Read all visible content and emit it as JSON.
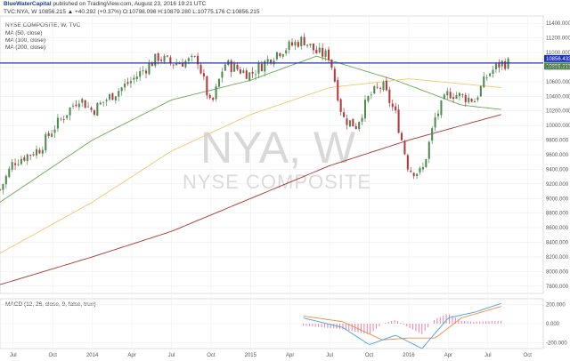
{
  "header": {
    "brand": "BlueWaterCapital",
    "published": "published on TradingView.com, August 23, 2016 19:21 UTC",
    "quote": "TVC:NYA, W  10856.215  ▲ +40.292 (+0.37%)  O:10798.096  H:10879.280  L:10775.176  C:10856.215"
  },
  "legend": {
    "title": "NYSE COMPOSITE, W, TVC",
    "ma50": "MA (50, close)",
    "ma100": "MA (100, close)",
    "ma200": "MA (200, close)",
    "macd": "MACD (12, 26, close, 9, false, true)"
  },
  "watermark": {
    "symbol": "NYA, W",
    "name": "NYSE COMPOSITE"
  },
  "colors": {
    "up": "#4f8a4f",
    "down": "#b3393a",
    "ma50": "#6aa84f",
    "ma100": "#f4c76b",
    "ma200": "#a83232",
    "hline": "#1e2fbf",
    "macd": "#3da3e8",
    "signal": "#f08a3c",
    "hist": "#e88bb0",
    "price_tag": "#1e2fbf"
  },
  "chart_data": {
    "type": "candlestick",
    "title": "NYSE COMPOSITE, W, TVC",
    "x_tick_labels": [
      "Jul",
      "Oct",
      "2014",
      "Apr",
      "Jul",
      "Oct",
      "2015",
      "Apr",
      "Jul",
      "Oct",
      "2016",
      "Apr",
      "Jul",
      "Oct"
    ],
    "x_tick_dates": [
      "2013-07",
      "2013-10",
      "2014-01",
      "2014-04",
      "2014-07",
      "2014-10",
      "2015-01",
      "2015-04",
      "2015-07",
      "2015-10",
      "2016-01",
      "2016-04",
      "2016-07",
      "2016-10"
    ],
    "y_tick_labels": [
      "11400.000",
      "11200.000",
      "11000.000",
      "10800.000",
      "10600.000",
      "10400.000",
      "10200.000",
      "10000.000",
      "9800.000",
      "9600.000",
      "9400.000",
      "9200.000",
      "9000.000",
      "8800.000",
      "8600.000",
      "8400.000",
      "8200.000",
      "8000.000",
      "7800.000"
    ],
    "ylim": [
      7700,
      11500
    ],
    "last_price": "10856.215",
    "resistance_label": "10856.433",
    "resistance_level": 10856.433,
    "ohlc_last": {
      "open": 10798.096,
      "high": 10879.28,
      "low": 10775.176,
      "close": 10856.215,
      "change": 40.292,
      "change_pct": 0.37
    },
    "price_anchors": [
      {
        "date": "2013-06",
        "close": 9120
      },
      {
        "date": "2013-07",
        "close": 9500
      },
      {
        "date": "2013-09",
        "close": 9680
      },
      {
        "date": "2013-10",
        "close": 9950
      },
      {
        "date": "2013-12",
        "close": 10380
      },
      {
        "date": "2014-01",
        "close": 10200
      },
      {
        "date": "2014-02",
        "close": 10350
      },
      {
        "date": "2014-04",
        "close": 10620
      },
      {
        "date": "2014-06",
        "close": 10940
      },
      {
        "date": "2014-07",
        "close": 10850
      },
      {
        "date": "2014-09",
        "close": 10900
      },
      {
        "date": "2014-10",
        "close": 10250
      },
      {
        "date": "2014-11",
        "close": 10850
      },
      {
        "date": "2015-01",
        "close": 10700
      },
      {
        "date": "2015-03",
        "close": 11000
      },
      {
        "date": "2015-05",
        "close": 11180
      },
      {
        "date": "2015-06",
        "close": 11000
      },
      {
        "date": "2015-07",
        "close": 10950
      },
      {
        "date": "2015-08",
        "close": 10100
      },
      {
        "date": "2015-09",
        "close": 10000
      },
      {
        "date": "2015-10",
        "close": 10400
      },
      {
        "date": "2015-11",
        "close": 10550
      },
      {
        "date": "2015-12",
        "close": 10150
      },
      {
        "date": "2016-01",
        "close": 9400
      },
      {
        "date": "2016-02",
        "close": 9350
      },
      {
        "date": "2016-03",
        "close": 10100
      },
      {
        "date": "2016-04",
        "close": 10450
      },
      {
        "date": "2016-05",
        "close": 10400
      },
      {
        "date": "2016-06",
        "close": 10350
      },
      {
        "date": "2016-07",
        "close": 10700
      },
      {
        "date": "2016-08",
        "close": 10856
      }
    ],
    "ma_anchors": {
      "MA (50, close)": [
        {
          "date": "2013-06",
          "value": 8950
        },
        {
          "date": "2014-01",
          "value": 9800
        },
        {
          "date": "2014-07",
          "value": 10350
        },
        {
          "date": "2015-01",
          "value": 10620
        },
        {
          "date": "2015-06",
          "value": 10950
        },
        {
          "date": "2015-12",
          "value": 10620
        },
        {
          "date": "2016-05",
          "value": 10280
        },
        {
          "date": "2016-08",
          "value": 10220
        }
      ],
      "MA (100, close)": [
        {
          "date": "2013-06",
          "value": 8250
        },
        {
          "date": "2014-01",
          "value": 8950
        },
        {
          "date": "2014-07",
          "value": 9650
        },
        {
          "date": "2015-01",
          "value": 10150
        },
        {
          "date": "2015-07",
          "value": 10520
        },
        {
          "date": "2016-01",
          "value": 10640
        },
        {
          "date": "2016-08",
          "value": 10520
        }
      ],
      "MA (200, close)": [
        {
          "date": "2013-06",
          "value": 7820
        },
        {
          "date": "2014-01",
          "value": 8200
        },
        {
          "date": "2014-07",
          "value": 8550
        },
        {
          "date": "2015-01",
          "value": 9000
        },
        {
          "date": "2015-07",
          "value": 9450
        },
        {
          "date": "2016-01",
          "value": 9800
        },
        {
          "date": "2016-08",
          "value": 10150
        }
      ]
    },
    "macd": {
      "y_tick_labels": [
        "200.000",
        "0.000",
        "-200.000"
      ],
      "ylim": [
        -260,
        260
      ],
      "macd_anchors": [
        {
          "date": "2015-05",
          "value": 60
        },
        {
          "date": "2015-08",
          "value": -40
        },
        {
          "date": "2015-10",
          "value": -220
        },
        {
          "date": "2015-12",
          "value": -120
        },
        {
          "date": "2016-02",
          "value": -260
        },
        {
          "date": "2016-04",
          "value": 60
        },
        {
          "date": "2016-06",
          "value": 120
        },
        {
          "date": "2016-08",
          "value": 210
        }
      ],
      "signal_anchors": [
        {
          "date": "2015-05",
          "value": 80
        },
        {
          "date": "2015-08",
          "value": 20
        },
        {
          "date": "2015-11",
          "value": -170
        },
        {
          "date": "2016-01",
          "value": -150
        },
        {
          "date": "2016-03",
          "value": -150
        },
        {
          "date": "2016-05",
          "value": 60
        },
        {
          "date": "2016-08",
          "value": 180
        }
      ]
    }
  }
}
